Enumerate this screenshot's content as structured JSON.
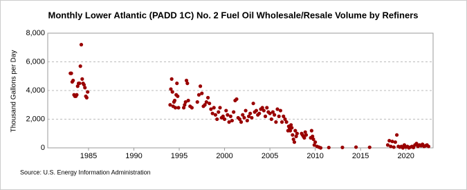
{
  "chart_data": {
    "type": "scatter",
    "title": "Monthly Lower Atlantic (PADD 1C) No. 2 Fuel Oil Wholesale/Resale Volume by Refiners",
    "y_label": "Thousand Gallons per Day",
    "source": "Source: U.S. Energy Information Administration",
    "color": "#990000",
    "grid": true,
    "xlim": [
      1980.5,
      2023
    ],
    "ylim": [
      0,
      8000
    ],
    "xticks": [
      1985,
      1990,
      1995,
      2000,
      2005,
      2010,
      2015,
      2020
    ],
    "yticks": [
      0,
      {
        "value": 2000,
        "label": "2,000"
      },
      {
        "value": 4000,
        "label": "4,000"
      },
      {
        "value": 6000,
        "label": "6,000"
      },
      {
        "value": 8000,
        "label": "8,000"
      }
    ],
    "x": [
      1983.0,
      1983.1,
      1983.2,
      1983.3,
      1983.4,
      1983.5,
      1983.6,
      1983.7,
      1983.8,
      1983.9,
      1984.0,
      1984.1,
      1984.2,
      1984.3,
      1984.4,
      1984.5,
      1984.6,
      1984.7,
      1984.8,
      1984.9,
      1994.0,
      1994.08,
      1994.17,
      1994.25,
      1994.33,
      1994.42,
      1994.5,
      1994.58,
      1994.67,
      1994.75,
      1994.83,
      1994.92,
      1995.5,
      1995.6,
      1995.7,
      1995.8,
      1995.9,
      1996.0,
      1996.2,
      1996.4,
      1997.0,
      1997.17,
      1997.33,
      1997.5,
      1997.67,
      1997.83,
      1998.0,
      1998.17,
      1998.33,
      1998.5,
      1998.67,
      1998.83,
      1999.0,
      1999.17,
      1999.33,
      1999.5,
      1999.67,
      1999.83,
      2000.0,
      2000.17,
      2000.33,
      2000.5,
      2000.67,
      2000.83,
      2001.0,
      2001.17,
      2001.33,
      2001.5,
      2001.67,
      2001.83,
      2002.0,
      2002.17,
      2002.33,
      2002.5,
      2002.67,
      2002.83,
      2003.0,
      2003.17,
      2003.33,
      2003.5,
      2003.67,
      2003.83,
      2004.0,
      2004.17,
      2004.33,
      2004.5,
      2004.67,
      2004.83,
      2005.0,
      2005.17,
      2005.33,
      2005.5,
      2005.67,
      2005.83,
      2006.0,
      2006.17,
      2006.33,
      2006.5,
      2006.67,
      2006.83,
      2007.0,
      2007.08,
      2007.17,
      2007.25,
      2007.33,
      2007.42,
      2007.5,
      2007.6,
      2007.7,
      2007.8,
      2007.9,
      2008.0,
      2008.5,
      2008.6,
      2008.7,
      2008.8,
      2008.9,
      2009.0,
      2009.5,
      2009.6,
      2009.7,
      2009.8,
      2009.9,
      2010.0,
      2010.2,
      2010.4,
      2010.6,
      2011.5,
      2013.0,
      2014.5,
      2016.0,
      2018.0,
      2018.17,
      2018.33,
      2018.5,
      2018.67,
      2018.83,
      2019.0,
      2019.17,
      2019.33,
      2019.5,
      2019.67,
      2019.83,
      2020.0,
      2020.17,
      2020.33,
      2020.5,
      2020.67,
      2020.83,
      2021.0,
      2021.17,
      2021.33,
      2021.5,
      2021.67,
      2021.83,
      2022.0,
      2022.17,
      2022.33,
      2022.5
    ],
    "values": [
      5200,
      5200,
      4600,
      4700,
      3700,
      3600,
      3600,
      3700,
      4300,
      4500,
      4500,
      5700,
      7200,
      4800,
      4500,
      4400,
      4200,
      3600,
      3500,
      3900,
      3000,
      4100,
      4800,
      3900,
      2900,
      3200,
      3300,
      2800,
      3700,
      4500,
      3600,
      2800,
      2800,
      3000,
      3200,
      4700,
      4500,
      3300,
      2900,
      2800,
      3200,
      3700,
      4300,
      3800,
      2900,
      3000,
      3200,
      3500,
      3100,
      2700,
      2400,
      2800,
      2300,
      2000,
      2500,
      2800,
      2100,
      2200,
      2000,
      2600,
      2300,
      1800,
      2200,
      1900,
      2500,
      3300,
      3400,
      2100,
      2000,
      1800,
      2300,
      2100,
      2600,
      1900,
      2200,
      2400,
      2100,
      3100,
      2500,
      2600,
      2300,
      2400,
      2700,
      2800,
      2600,
      2200,
      2800,
      2500,
      2400,
      2000,
      2500,
      2300,
      1800,
      2700,
      2200,
      2600,
      1800,
      2200,
      2000,
      1800,
      1200,
      1500,
      1400,
      1200,
      1600,
      1400,
      900,
      600,
      400,
      1200,
      800,
      1000,
      1000,
      900,
      800,
      700,
      1100,
      900,
      700,
      1200,
      800,
      600,
      200,
      400,
      100,
      50,
      0,
      20,
      30,
      50,
      40,
      200,
      500,
      100,
      450,
      50,
      400,
      900,
      100,
      50,
      100,
      0,
      200,
      50,
      100,
      0,
      50,
      100,
      20,
      200,
      300,
      100,
      200,
      150,
      250,
      100,
      150,
      200,
      100
    ]
  }
}
